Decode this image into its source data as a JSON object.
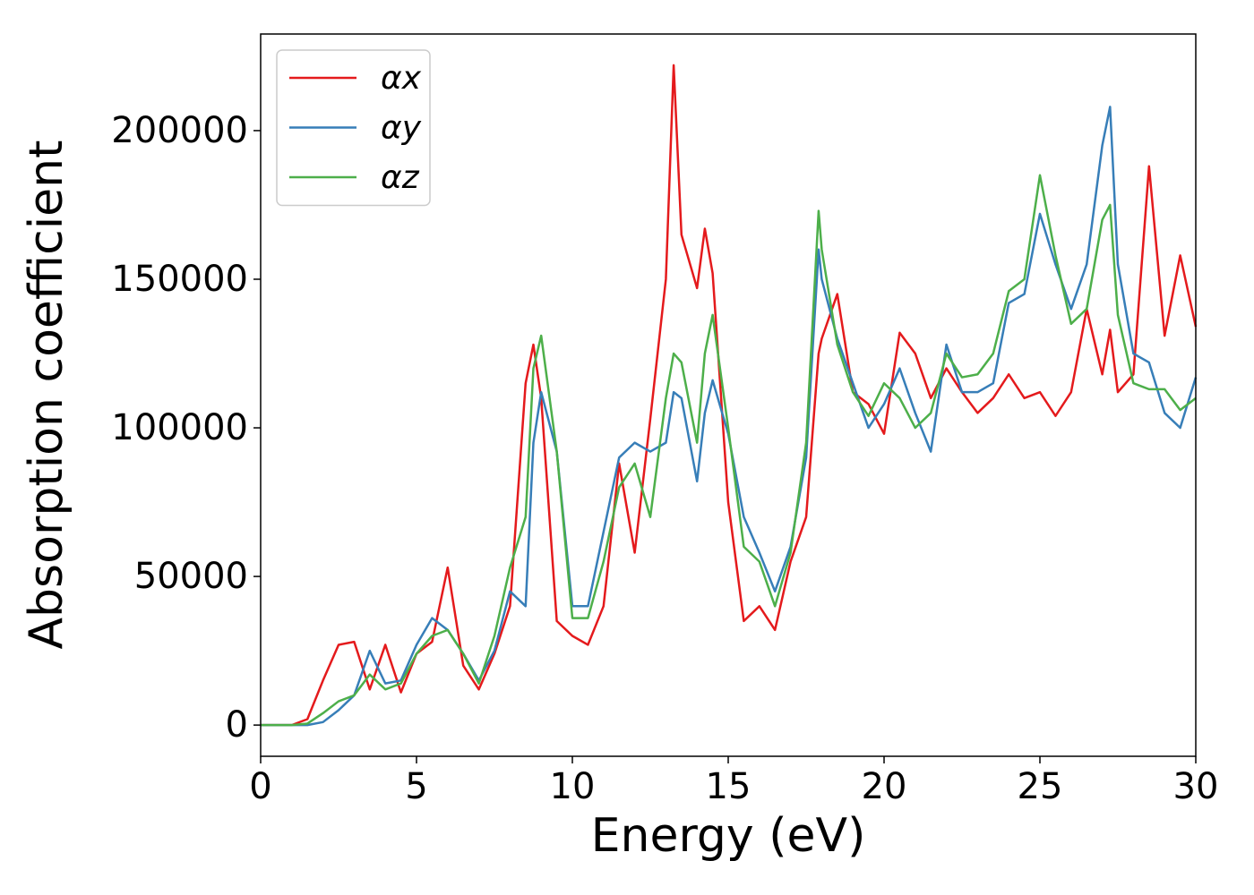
{
  "chart_data": {
    "type": "line",
    "xlabel": "Energy (eV)",
    "ylabel": "Absorption coefficient",
    "x": [
      0,
      0.5,
      1,
      1.5,
      2,
      2.5,
      3,
      3.5,
      4,
      4.5,
      5,
      5.5,
      6,
      6.5,
      7,
      7.5,
      8,
      8.5,
      8.75,
      9,
      9.5,
      10,
      10.5,
      11,
      11.5,
      12,
      12.5,
      13,
      13.25,
      13.5,
      14,
      14.25,
      14.5,
      15,
      15.5,
      16,
      16.5,
      17,
      17.5,
      17.9,
      18,
      18.5,
      19,
      19.5,
      20,
      20.5,
      21,
      21.5,
      22,
      22.5,
      23,
      23.5,
      24,
      24.5,
      25,
      25.5,
      26,
      26.5,
      27,
      27.25,
      27.5,
      28,
      28.5,
      29,
      29.5,
      30
    ],
    "series": [
      {
        "name": "αx",
        "color": "#e41a1c",
        "values": [
          0,
          0,
          0,
          2000,
          15000,
          27000,
          28000,
          12000,
          27000,
          11000,
          24000,
          28000,
          53000,
          20000,
          12000,
          24000,
          40000,
          115000,
          128000,
          110000,
          35000,
          30000,
          27000,
          40000,
          88000,
          58000,
          103000,
          150000,
          222000,
          165000,
          147000,
          167000,
          152000,
          75000,
          35000,
          40000,
          32000,
          55000,
          70000,
          125000,
          130000,
          145000,
          112000,
          108000,
          98000,
          132000,
          125000,
          110000,
          120000,
          112000,
          105000,
          110000,
          118000,
          110000,
          112000,
          104000,
          112000,
          140000,
          118000,
          133000,
          112000,
          118000,
          188000,
          131000,
          158000,
          134000
        ]
      },
      {
        "name": "αy",
        "color": "#377eb8",
        "values": [
          0,
          0,
          0,
          0,
          1000,
          5000,
          10000,
          25000,
          14000,
          15000,
          27000,
          36000,
          32000,
          24000,
          15000,
          25000,
          45000,
          40000,
          95000,
          112000,
          92000,
          40000,
          40000,
          65000,
          90000,
          95000,
          92000,
          95000,
          112000,
          110000,
          82000,
          105000,
          116000,
          98000,
          70000,
          58000,
          45000,
          60000,
          90000,
          160000,
          150000,
          130000,
          115000,
          100000,
          108000,
          120000,
          105000,
          92000,
          128000,
          112000,
          112000,
          115000,
          142000,
          145000,
          172000,
          155000,
          140000,
          155000,
          195000,
          208000,
          155000,
          125000,
          122000,
          105000,
          100000,
          117000
        ]
      },
      {
        "name": "αz",
        "color": "#4daf4a",
        "values": [
          0,
          0,
          0,
          500,
          4000,
          8000,
          10000,
          17000,
          12000,
          14000,
          24000,
          30000,
          32000,
          24000,
          14000,
          30000,
          53000,
          70000,
          120000,
          131000,
          92000,
          36000,
          36000,
          55000,
          80000,
          88000,
          70000,
          110000,
          125000,
          122000,
          95000,
          125000,
          138000,
          100000,
          60000,
          55000,
          40000,
          58000,
          95000,
          173000,
          160000,
          128000,
          112000,
          104000,
          115000,
          110000,
          100000,
          105000,
          125000,
          117000,
          118000,
          125000,
          146000,
          150000,
          185000,
          158000,
          135000,
          140000,
          170000,
          175000,
          138000,
          115000,
          113000,
          113000,
          106000,
          110000
        ]
      }
    ],
    "xlim": [
      0,
      30
    ],
    "xticks": [
      0,
      5,
      10,
      15,
      20,
      25,
      30
    ],
    "ylim": [
      -10500,
      232500
    ],
    "yticks": [
      0,
      50000,
      100000,
      150000,
      200000
    ],
    "grid": false,
    "legend": "upper left"
  }
}
